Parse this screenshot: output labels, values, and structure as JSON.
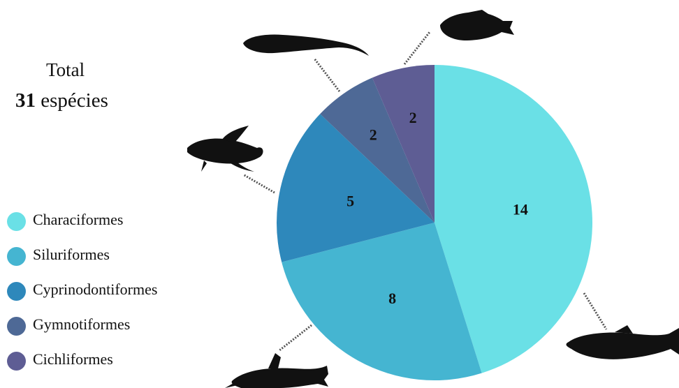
{
  "summary": {
    "total_label": "Total",
    "total_count": "31",
    "total_unit": "espécies"
  },
  "colors": {
    "characiformes": "#6ae0e6",
    "siluriformes": "#45b5d1",
    "cyprinodontiformes": "#2e88bb",
    "gymnotiformes": "#4e6996",
    "cichliformes": "#5e5d94"
  },
  "chart_data": {
    "type": "pie",
    "total": 31,
    "slices": [
      {
        "label": "Characiformes",
        "value": 14,
        "color": "#6ae0e6",
        "icon": "fish-silhouette-icon"
      },
      {
        "label": "Siluriformes",
        "value": 8,
        "color": "#45b5d1",
        "icon": "fish-silhouette-icon"
      },
      {
        "label": "Cyprinodontiformes",
        "value": 5,
        "color": "#2e88bb",
        "icon": "fish-silhouette-icon"
      },
      {
        "label": "Gymnotiformes",
        "value": 2,
        "color": "#4e6996",
        "icon": "knifefish-silhouette-icon"
      },
      {
        "label": "Cichliformes",
        "value": 2,
        "color": "#5e5d94",
        "icon": "cichlid-silhouette-icon"
      }
    ],
    "start": "12 o'clock",
    "direction": "clockwise",
    "legend_position": "left"
  }
}
